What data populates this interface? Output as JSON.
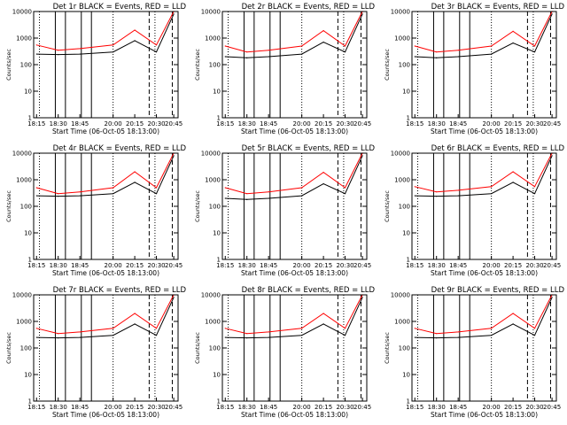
{
  "chart_data": [
    {
      "type": "line",
      "title": "Det 1r BLACK = Events, RED = LLD",
      "xlabel": "Start Time (06-Oct-05 18:13:00)",
      "ylabel": "Counts/sec",
      "x": [
        "18:15",
        "18:30",
        "18:45",
        "20:00",
        "20:15",
        "20:30",
        "20:45"
      ],
      "ylim": [
        1,
        10000
      ],
      "yscale": "log",
      "yticks": [
        "1",
        "10",
        "100",
        "1000",
        "10000"
      ],
      "series": [
        {
          "color": "#000000",
          "values": [
            250,
            240,
            250,
            300,
            800,
            300,
            8000
          ]
        },
        {
          "color": "#ff0000",
          "values": [
            550,
            350,
            400,
            550,
            2000,
            550,
            10000
          ]
        }
      ]
    },
    {
      "type": "line",
      "title": "Det 2r BLACK = Events, RED = LLD",
      "xlabel": "Start Time (06-Oct-05 18:13:00)",
      "ylabel": "Counts/sec",
      "x": [
        "18:15",
        "18:30",
        "18:45",
        "20:00",
        "20:15",
        "20:30",
        "20:45"
      ],
      "ylim": [
        1,
        10000
      ],
      "yscale": "log",
      "yticks": [
        "1",
        "10",
        "100",
        "1000",
        "10000"
      ],
      "series": [
        {
          "color": "#000000",
          "values": [
            200,
            180,
            200,
            250,
            700,
            300,
            8000
          ]
        },
        {
          "color": "#ff0000",
          "values": [
            500,
            300,
            350,
            500,
            1900,
            500,
            10000
          ]
        }
      ]
    },
    {
      "type": "line",
      "title": "Det 3r BLACK = Events, RED = LLD",
      "xlabel": "Start Time (06-Oct-05 18:13:00)",
      "ylabel": "Counts/sec",
      "x": [
        "18:15",
        "18:30",
        "18:45",
        "20:00",
        "20:15",
        "20:30",
        "20:45"
      ],
      "ylim": [
        1,
        10000
      ],
      "yscale": "log",
      "yticks": [
        "1",
        "10",
        "100",
        "1000",
        "10000"
      ],
      "series": [
        {
          "color": "#000000",
          "values": [
            200,
            180,
            200,
            250,
            650,
            300,
            8000
          ]
        },
        {
          "color": "#ff0000",
          "values": [
            500,
            300,
            350,
            500,
            1800,
            500,
            10000
          ]
        }
      ]
    },
    {
      "type": "line",
      "title": "Det 4r BLACK = Events, RED = LLD",
      "xlabel": "Start Time (06-Oct-05 18:13:00)",
      "ylabel": "Counts/sec",
      "x": [
        "18:15",
        "18:30",
        "18:45",
        "20:00",
        "20:15",
        "20:30",
        "20:45"
      ],
      "ylim": [
        1,
        10000
      ],
      "yscale": "log",
      "yticks": [
        "1",
        "10",
        "100",
        "1000",
        "10000"
      ],
      "series": [
        {
          "color": "#000000",
          "values": [
            250,
            240,
            250,
            300,
            800,
            300,
            8000
          ]
        },
        {
          "color": "#ff0000",
          "values": [
            500,
            300,
            350,
            500,
            2000,
            500,
            10000
          ]
        }
      ]
    },
    {
      "type": "line",
      "title": "Det 5r BLACK = Events, RED = LLD",
      "xlabel": "Start Time (06-Oct-05 18:13:00)",
      "ylabel": "Counts/sec",
      "x": [
        "18:15",
        "18:30",
        "18:45",
        "20:00",
        "20:15",
        "20:30",
        "20:45"
      ],
      "ylim": [
        1,
        10000
      ],
      "yscale": "log",
      "yticks": [
        "1",
        "10",
        "100",
        "1000",
        "10000"
      ],
      "series": [
        {
          "color": "#000000",
          "values": [
            200,
            180,
            200,
            250,
            700,
            300,
            8000
          ]
        },
        {
          "color": "#ff0000",
          "values": [
            500,
            300,
            350,
            500,
            1900,
            500,
            10000
          ]
        }
      ]
    },
    {
      "type": "line",
      "title": "Det 6r BLACK = Events, RED = LLD",
      "xlabel": "Start Time (06-Oct-05 18:13:00)",
      "ylabel": "Counts/sec",
      "x": [
        "18:15",
        "18:30",
        "18:45",
        "20:00",
        "20:15",
        "20:30",
        "20:45"
      ],
      "ylim": [
        1,
        10000
      ],
      "yscale": "log",
      "yticks": [
        "1",
        "10",
        "100",
        "1000",
        "10000"
      ],
      "series": [
        {
          "color": "#000000",
          "values": [
            250,
            240,
            250,
            300,
            800,
            300,
            8000
          ]
        },
        {
          "color": "#ff0000",
          "values": [
            550,
            350,
            400,
            550,
            2000,
            550,
            10000
          ]
        }
      ]
    },
    {
      "type": "line",
      "title": "Det 7r BLACK = Events, RED = LLD",
      "xlabel": "Start Time (06-Oct-05 18:13:00)",
      "ylabel": "Counts/sec",
      "x": [
        "18:15",
        "18:30",
        "18:45",
        "20:00",
        "20:15",
        "20:30",
        "20:45"
      ],
      "ylim": [
        1,
        10000
      ],
      "yscale": "log",
      "yticks": [
        "1",
        "10",
        "100",
        "1000",
        "10000"
      ],
      "series": [
        {
          "color": "#000000",
          "values": [
            250,
            240,
            250,
            300,
            800,
            300,
            8000
          ]
        },
        {
          "color": "#ff0000",
          "values": [
            550,
            350,
            400,
            550,
            2000,
            550,
            10000
          ]
        }
      ]
    },
    {
      "type": "line",
      "title": "Det 8r BLACK = Events, RED = LLD",
      "xlabel": "Start Time (06-Oct-05 18:13:00)",
      "ylabel": "Counts/sec",
      "x": [
        "18:15",
        "18:30",
        "18:45",
        "20:00",
        "20:15",
        "20:30",
        "20:45"
      ],
      "ylim": [
        1,
        10000
      ],
      "yscale": "log",
      "yticks": [
        "1",
        "10",
        "100",
        "1000",
        "10000"
      ],
      "series": [
        {
          "color": "#000000",
          "values": [
            250,
            240,
            250,
            300,
            800,
            300,
            8000
          ]
        },
        {
          "color": "#ff0000",
          "values": [
            550,
            350,
            400,
            550,
            2000,
            550,
            10000
          ]
        }
      ]
    },
    {
      "type": "line",
      "title": "Det 9r BLACK = Events, RED = LLD",
      "xlabel": "Start Time (06-Oct-05 18:13:00)",
      "ylabel": "Counts/sec",
      "x": [
        "18:15",
        "18:30",
        "18:45",
        "20:00",
        "20:15",
        "20:30",
        "20:45"
      ],
      "ylim": [
        1,
        10000
      ],
      "yscale": "log",
      "yticks": [
        "1",
        "10",
        "100",
        "1000",
        "10000"
      ],
      "series": [
        {
          "color": "#000000",
          "values": [
            250,
            240,
            250,
            300,
            800,
            300,
            8000
          ]
        },
        {
          "color": "#ff0000",
          "values": [
            550,
            350,
            400,
            550,
            2000,
            550,
            10000
          ]
        }
      ]
    }
  ]
}
